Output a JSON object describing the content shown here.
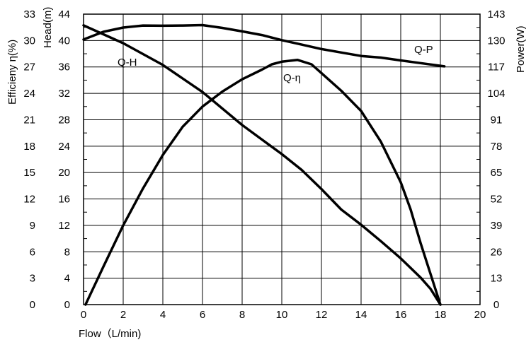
{
  "chart_data": {
    "type": "line",
    "xlabel": "Flow（L/min)",
    "ylabel_left_efficiency": "Efficieny η(%)",
    "ylabel_left_head": "Head(m)",
    "ylabel_right": "Power(W)",
    "xlim": [
      0,
      20
    ],
    "x_ticks": [
      "0",
      "2",
      "4",
      "6",
      "8",
      "10",
      "12",
      "14",
      "16",
      "18",
      "20"
    ],
    "efficiency_axis": {
      "ylim": [
        0,
        33
      ],
      "ticks": [
        "0",
        "3",
        "6",
        "9",
        "12",
        "15",
        "18",
        "21",
        "24",
        "27",
        "30",
        "33"
      ]
    },
    "head_axis": {
      "ylim": [
        0,
        44
      ],
      "ticks": [
        "0",
        "4",
        "8",
        "12",
        "16",
        "20",
        "24",
        "28",
        "32",
        "36",
        "40",
        "44"
      ]
    },
    "power_axis": {
      "ylim": [
        0,
        143
      ],
      "ticks": [
        "0",
        "13",
        "26",
        "39",
        "52",
        "65",
        "78",
        "91",
        "104",
        "117",
        "130",
        "143"
      ]
    },
    "grid": true,
    "series": [
      {
        "name": "Q-H",
        "axis": "head",
        "points": [
          [
            0,
            42.3
          ],
          [
            2,
            39.6
          ],
          [
            4,
            36.3
          ],
          [
            6,
            32.2
          ],
          [
            8,
            27.2
          ],
          [
            9,
            25.0
          ],
          [
            10,
            22.8
          ],
          [
            11,
            20.4
          ],
          [
            12,
            17.5
          ],
          [
            13,
            14.4
          ],
          [
            14,
            12.1
          ],
          [
            15,
            9.6
          ],
          [
            16,
            7.0
          ],
          [
            17,
            4.1
          ],
          [
            17.5,
            2.4
          ],
          [
            18,
            0
          ]
        ]
      },
      {
        "name": "Q-η",
        "axis": "efficiency",
        "points": [
          [
            0.1,
            0
          ],
          [
            1,
            4.3
          ],
          [
            2,
            9.0
          ],
          [
            3,
            13.2
          ],
          [
            4,
            17.0
          ],
          [
            5,
            20.2
          ],
          [
            6,
            22.5
          ],
          [
            7,
            24.2
          ],
          [
            8,
            25.6
          ],
          [
            9,
            26.7
          ],
          [
            9.5,
            27.3
          ],
          [
            10,
            27.6
          ],
          [
            10.8,
            27.8
          ],
          [
            11.5,
            27.3
          ],
          [
            12,
            26.3
          ],
          [
            13,
            24.3
          ],
          [
            14,
            22.0
          ],
          [
            15,
            18.5
          ],
          [
            16,
            13.9
          ],
          [
            16.5,
            10.8
          ],
          [
            17,
            7.0
          ],
          [
            17.5,
            3.5
          ],
          [
            18,
            0
          ]
        ]
      },
      {
        "name": "Q-P",
        "axis": "power",
        "points": [
          [
            0,
            130.5
          ],
          [
            1,
            134.3
          ],
          [
            2,
            136.4
          ],
          [
            3,
            137.4
          ],
          [
            4,
            137.3
          ],
          [
            5,
            137.4
          ],
          [
            6,
            137.6
          ],
          [
            7,
            136.2
          ],
          [
            8,
            134.5
          ],
          [
            9,
            132.7
          ],
          [
            10,
            130.2
          ],
          [
            11,
            128.0
          ],
          [
            12,
            125.8
          ],
          [
            13,
            124.1
          ],
          [
            14,
            122.4
          ],
          [
            15,
            121.6
          ],
          [
            16,
            120.2
          ],
          [
            17,
            118.9
          ],
          [
            18.2,
            117.3
          ]
        ]
      }
    ]
  }
}
